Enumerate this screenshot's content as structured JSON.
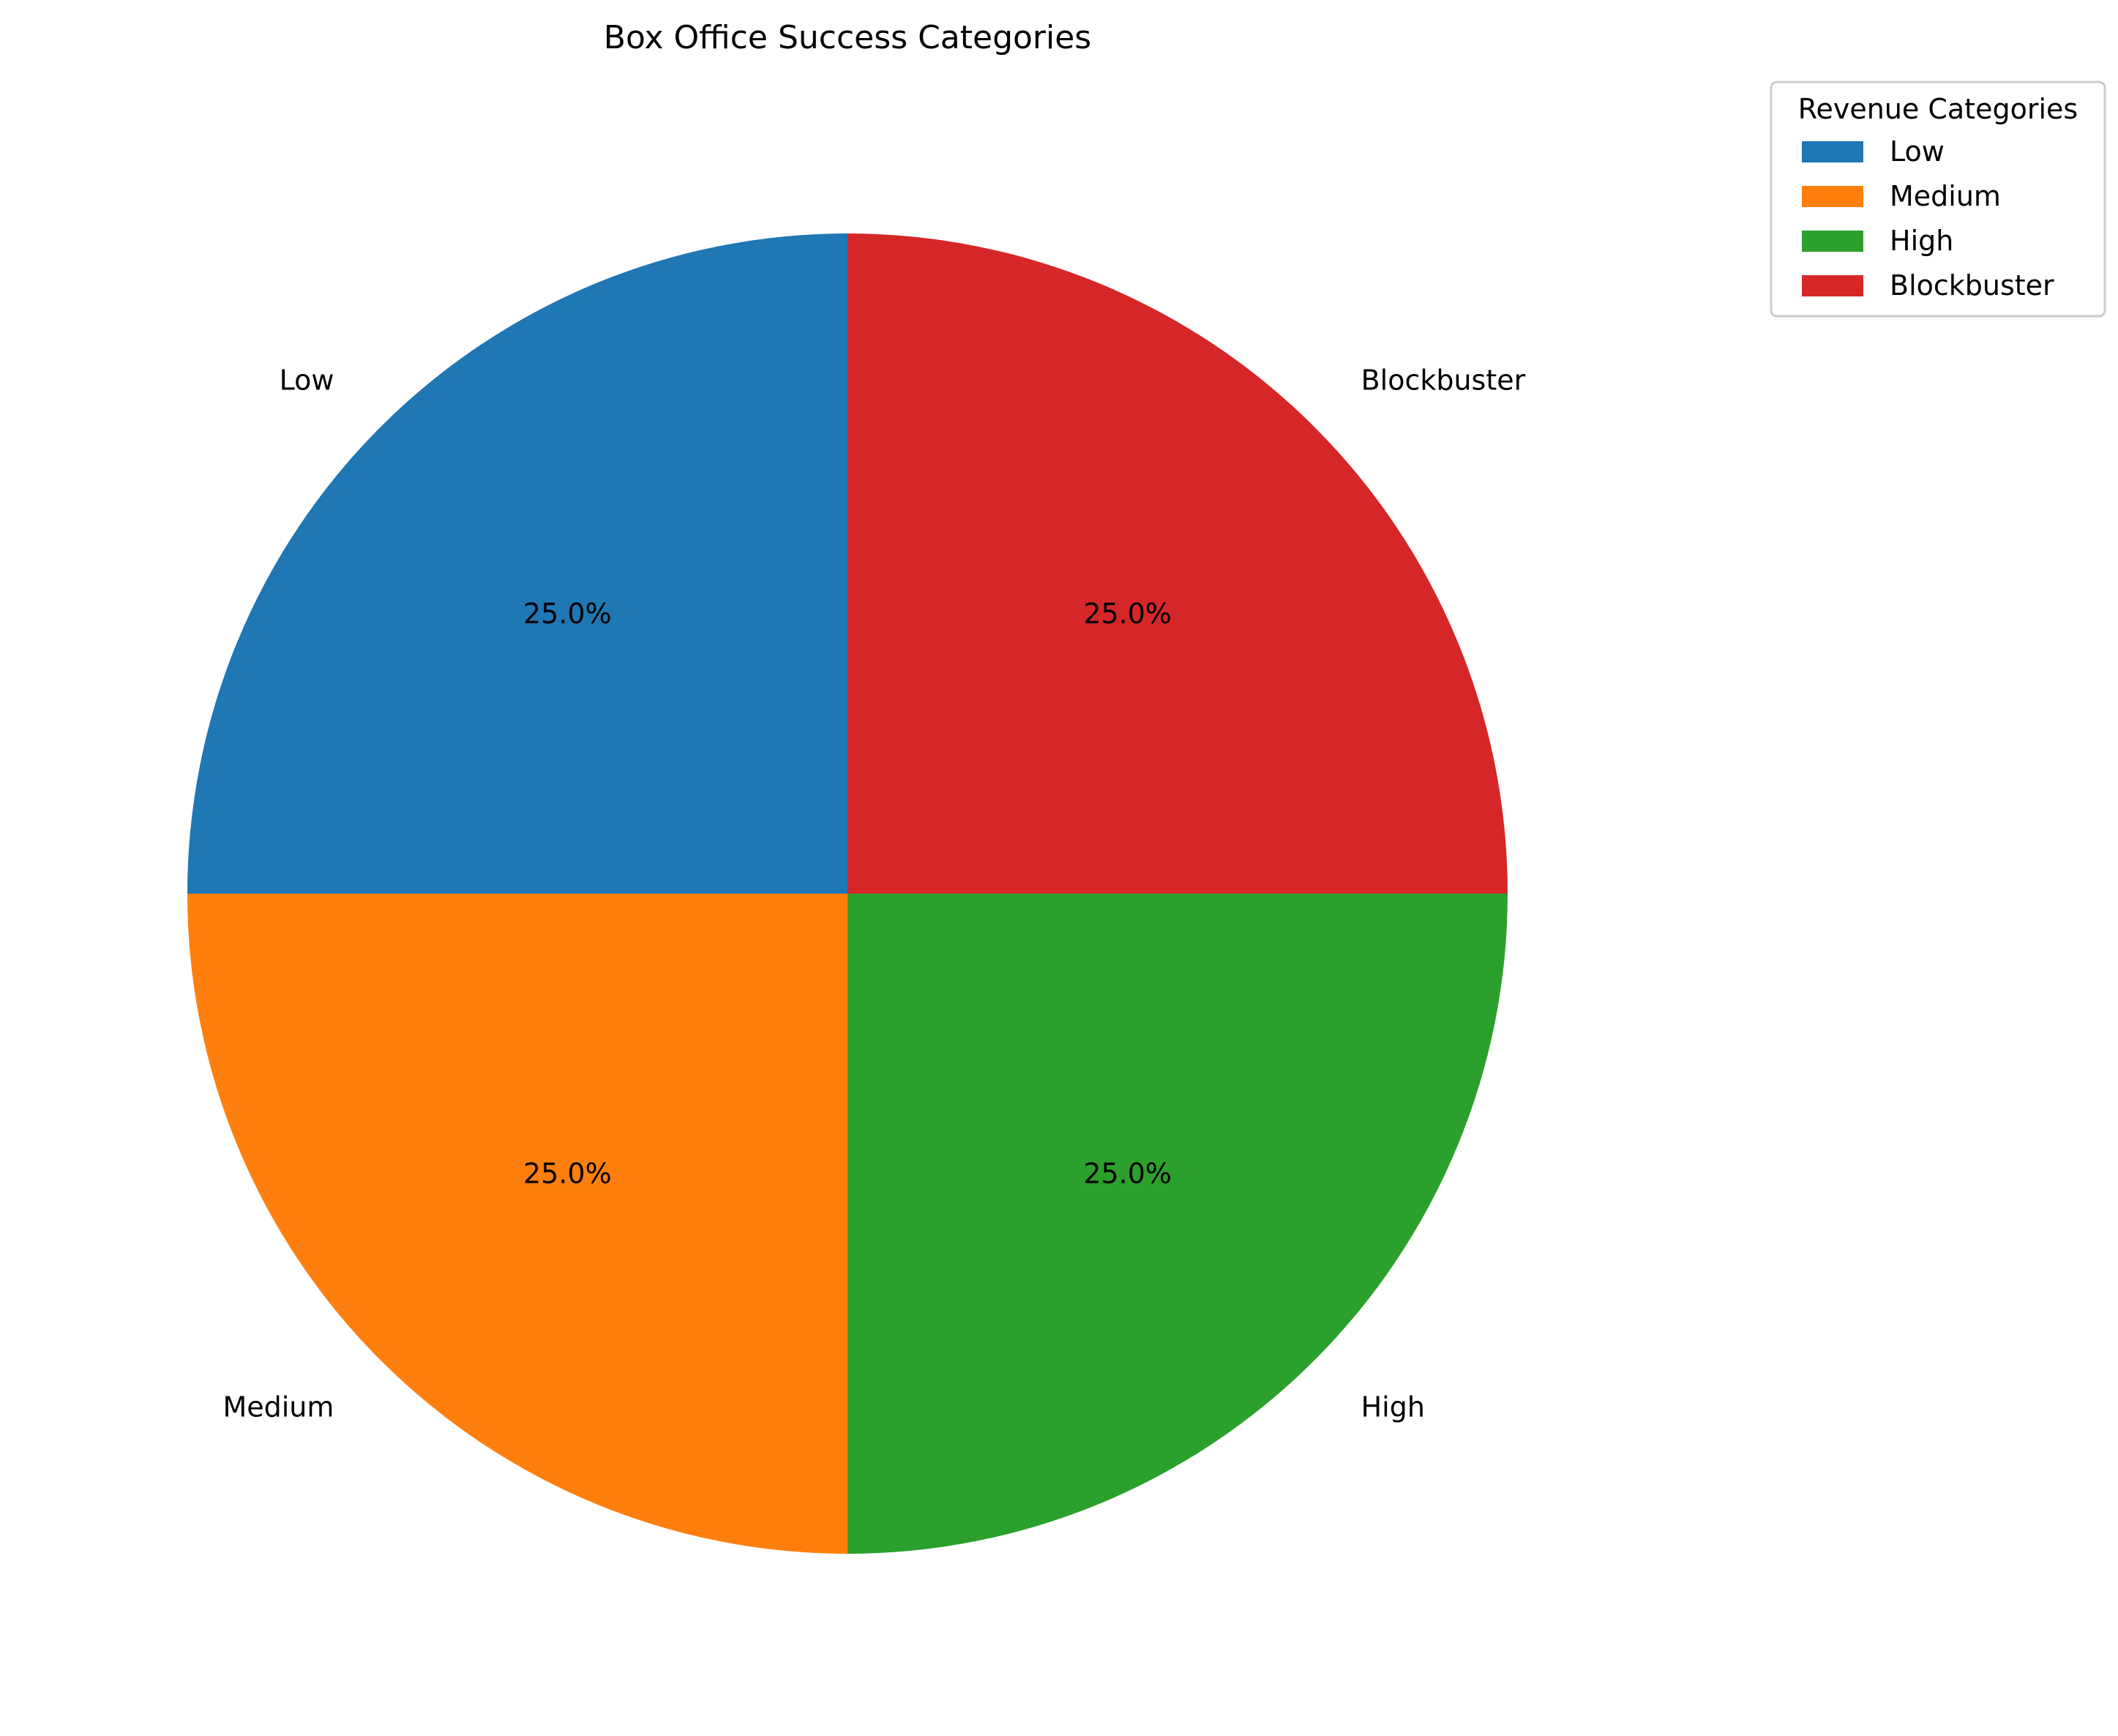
{
  "chart_data": {
    "type": "pie",
    "title": "Box Office Success Categories",
    "categories": [
      "Low",
      "Medium",
      "High",
      "Blockbuster"
    ],
    "values": [
      25.0,
      25.0,
      25.0,
      25.0
    ],
    "percent_labels": [
      "25.0%",
      "25.0%",
      "25.0%",
      "25.0%"
    ],
    "colors": [
      "#1f77b4",
      "#ff7f0e",
      "#2ca02c",
      "#d62728"
    ],
    "start_angle_deg": 90,
    "direction": "counterclockwise",
    "legend": {
      "title": "Revenue Categories",
      "placement": "top-right",
      "items": [
        "Low",
        "Medium",
        "High",
        "Blockbuster"
      ]
    }
  }
}
